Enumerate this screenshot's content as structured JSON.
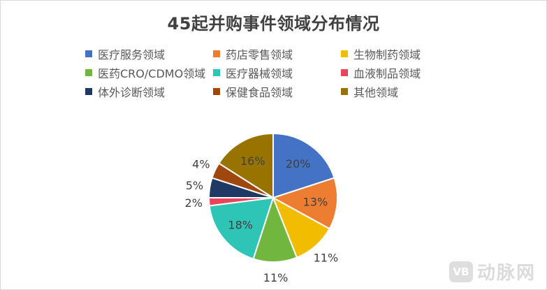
{
  "chart_data": {
    "type": "pie",
    "title": "45起并购事件领域分布情况",
    "legend_position": "top",
    "slices": [
      {
        "label": "医疗服务领域",
        "value": 20,
        "display": "20%",
        "color": "#4472C4"
      },
      {
        "label": "药店零售领域",
        "value": 13,
        "display": "13%",
        "color": "#ED7D31"
      },
      {
        "label": "生物制药领域",
        "value": 11,
        "display": "11%",
        "color": "#F2BC00"
      },
      {
        "label": "医药CRO/CDMO领域",
        "value": 11,
        "display": "11%",
        "color": "#70B63F"
      },
      {
        "label": "医疗器械领域",
        "value": 18,
        "display": "18%",
        "color": "#2EC4B6"
      },
      {
        "label": "血液制品领域",
        "value": 2,
        "display": "2%",
        "color": "#E8455A"
      },
      {
        "label": "体外诊断领域",
        "value": 5,
        "display": "5%",
        "color": "#203864"
      },
      {
        "label": "保健食品领域",
        "value": 4,
        "display": "4%",
        "color": "#9E480E"
      },
      {
        "label": "其他领域",
        "value": 16,
        "display": "16%",
        "color": "#997300"
      }
    ]
  },
  "watermark": {
    "logo_text": "VB",
    "text": "动脉网"
  }
}
